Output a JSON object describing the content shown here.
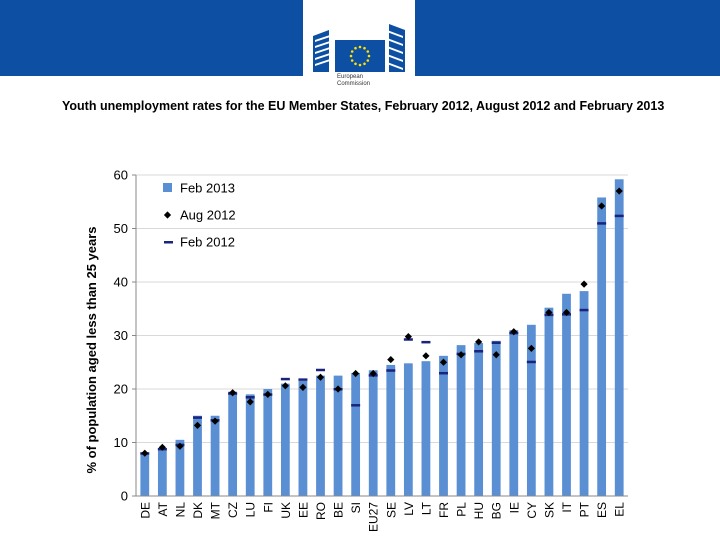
{
  "header": {
    "logo_line1": "European",
    "logo_line2": "Commission",
    "brand_color": "#0d4fa3"
  },
  "slide_title": "Youth unemployment rates for the EU Member States, February 2012, August 2012 and February 2013",
  "chart_data": {
    "type": "bar",
    "title": "",
    "xlabel": "",
    "ylabel": "% of population aged less than 25 years",
    "ylim": [
      0,
      60
    ],
    "yticks": [
      "0",
      "10",
      "20",
      "30",
      "40",
      "50",
      "60"
    ],
    "categories": [
      "DE",
      "AT",
      "NL",
      "DK",
      "MT",
      "CZ",
      "LU",
      "FI",
      "UK",
      "EE",
      "RO",
      "BE",
      "SI",
      "EU27",
      "SE",
      "LV",
      "LT",
      "FR",
      "PL",
      "HU",
      "BG",
      "IE",
      "CY",
      "SK",
      "IT",
      "PT",
      "ES",
      "EL"
    ],
    "series": [
      {
        "name": "Feb 2013",
        "marker": "bar",
        "color": "#5b8fd4",
        "values": [
          7.8,
          8.9,
          10.5,
          15.0,
          15.0,
          19.5,
          19.0,
          20.0,
          21.0,
          21.5,
          22.5,
          22.5,
          23.0,
          23.5,
          24.5,
          24.8,
          25.2,
          26.2,
          28.2,
          28.6,
          29.0,
          31.0,
          32.0,
          35.2,
          37.8,
          38.3,
          55.8,
          59.2
        ]
      },
      {
        "name": "Aug 2012",
        "marker": "diamond",
        "color": "#000000",
        "values": [
          8.0,
          9.1,
          9.3,
          13.2,
          14.0,
          19.3,
          17.6,
          19.0,
          20.6,
          20.3,
          22.2,
          20.0,
          22.9,
          22.9,
          25.5,
          29.8,
          26.2,
          25.0,
          26.4,
          28.8,
          26.4,
          30.7,
          27.6,
          34.3,
          34.3,
          39.6,
          54.2,
          57.0
        ]
      },
      {
        "name": "Feb 2012",
        "marker": "dash",
        "color": "#1a237e",
        "values": [
          8.0,
          8.8,
          9.6,
          14.7,
          14.2,
          19.2,
          18.5,
          19.0,
          21.9,
          21.8,
          23.6,
          20.0,
          17.0,
          22.6,
          23.5,
          29.3,
          28.8,
          23.0,
          26.6,
          27.1,
          28.7,
          30.5,
          25.1,
          33.9,
          34.0,
          34.8,
          51.0,
          52.4
        ]
      }
    ],
    "legend": {
      "position": "top-left",
      "labels": [
        "Feb 2013",
        "Aug 2012",
        "Feb 2012"
      ]
    }
  }
}
